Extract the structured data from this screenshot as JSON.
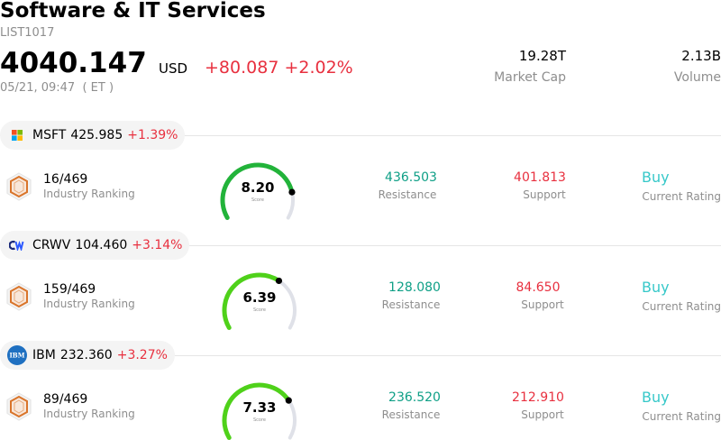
{
  "header": {
    "title": "Software & IT Services",
    "code": "LIST1017",
    "price": "4040.147",
    "currency": "USD",
    "change": "+80.087 +2.02%",
    "time": "05/21, 09:47  ( ET )",
    "market_cap_value": "19.28T",
    "market_cap_label": "Market Cap",
    "volume_value": "2.13B",
    "volume_label": "Volume"
  },
  "labels": {
    "industry_ranking": "Industry Ranking",
    "score": "Score",
    "resistance": "Resistance",
    "support": "Support",
    "current_rating": "Current Rating"
  },
  "stocks": [
    {
      "symbol": "MSFT",
      "price": "425.985",
      "change_pct": "+1.39%",
      "logo_icon": "microsoft-logo-icon",
      "ranking": "16/469",
      "score": "8.20",
      "score_fraction": 0.82,
      "resistance": "436.503",
      "support": "401.813",
      "rating": "Buy",
      "gauge_color": "#22b33a"
    },
    {
      "symbol": "CRWV",
      "price": "104.460",
      "change_pct": "+3.14%",
      "logo_icon": "coreweave-logo-icon",
      "ranking": "159/469",
      "score": "6.39",
      "score_fraction": 0.639,
      "resistance": "128.080",
      "support": "84.650",
      "rating": "Buy",
      "gauge_color": "#4fd11a"
    },
    {
      "symbol": "IBM",
      "price": "232.360",
      "change_pct": "+3.27%",
      "logo_icon": "ibm-logo-icon",
      "ranking": "89/469",
      "score": "7.33",
      "score_fraction": 0.733,
      "resistance": "236.520",
      "support": "212.910",
      "rating": "Buy",
      "gauge_color": "#4fd11a"
    }
  ]
}
